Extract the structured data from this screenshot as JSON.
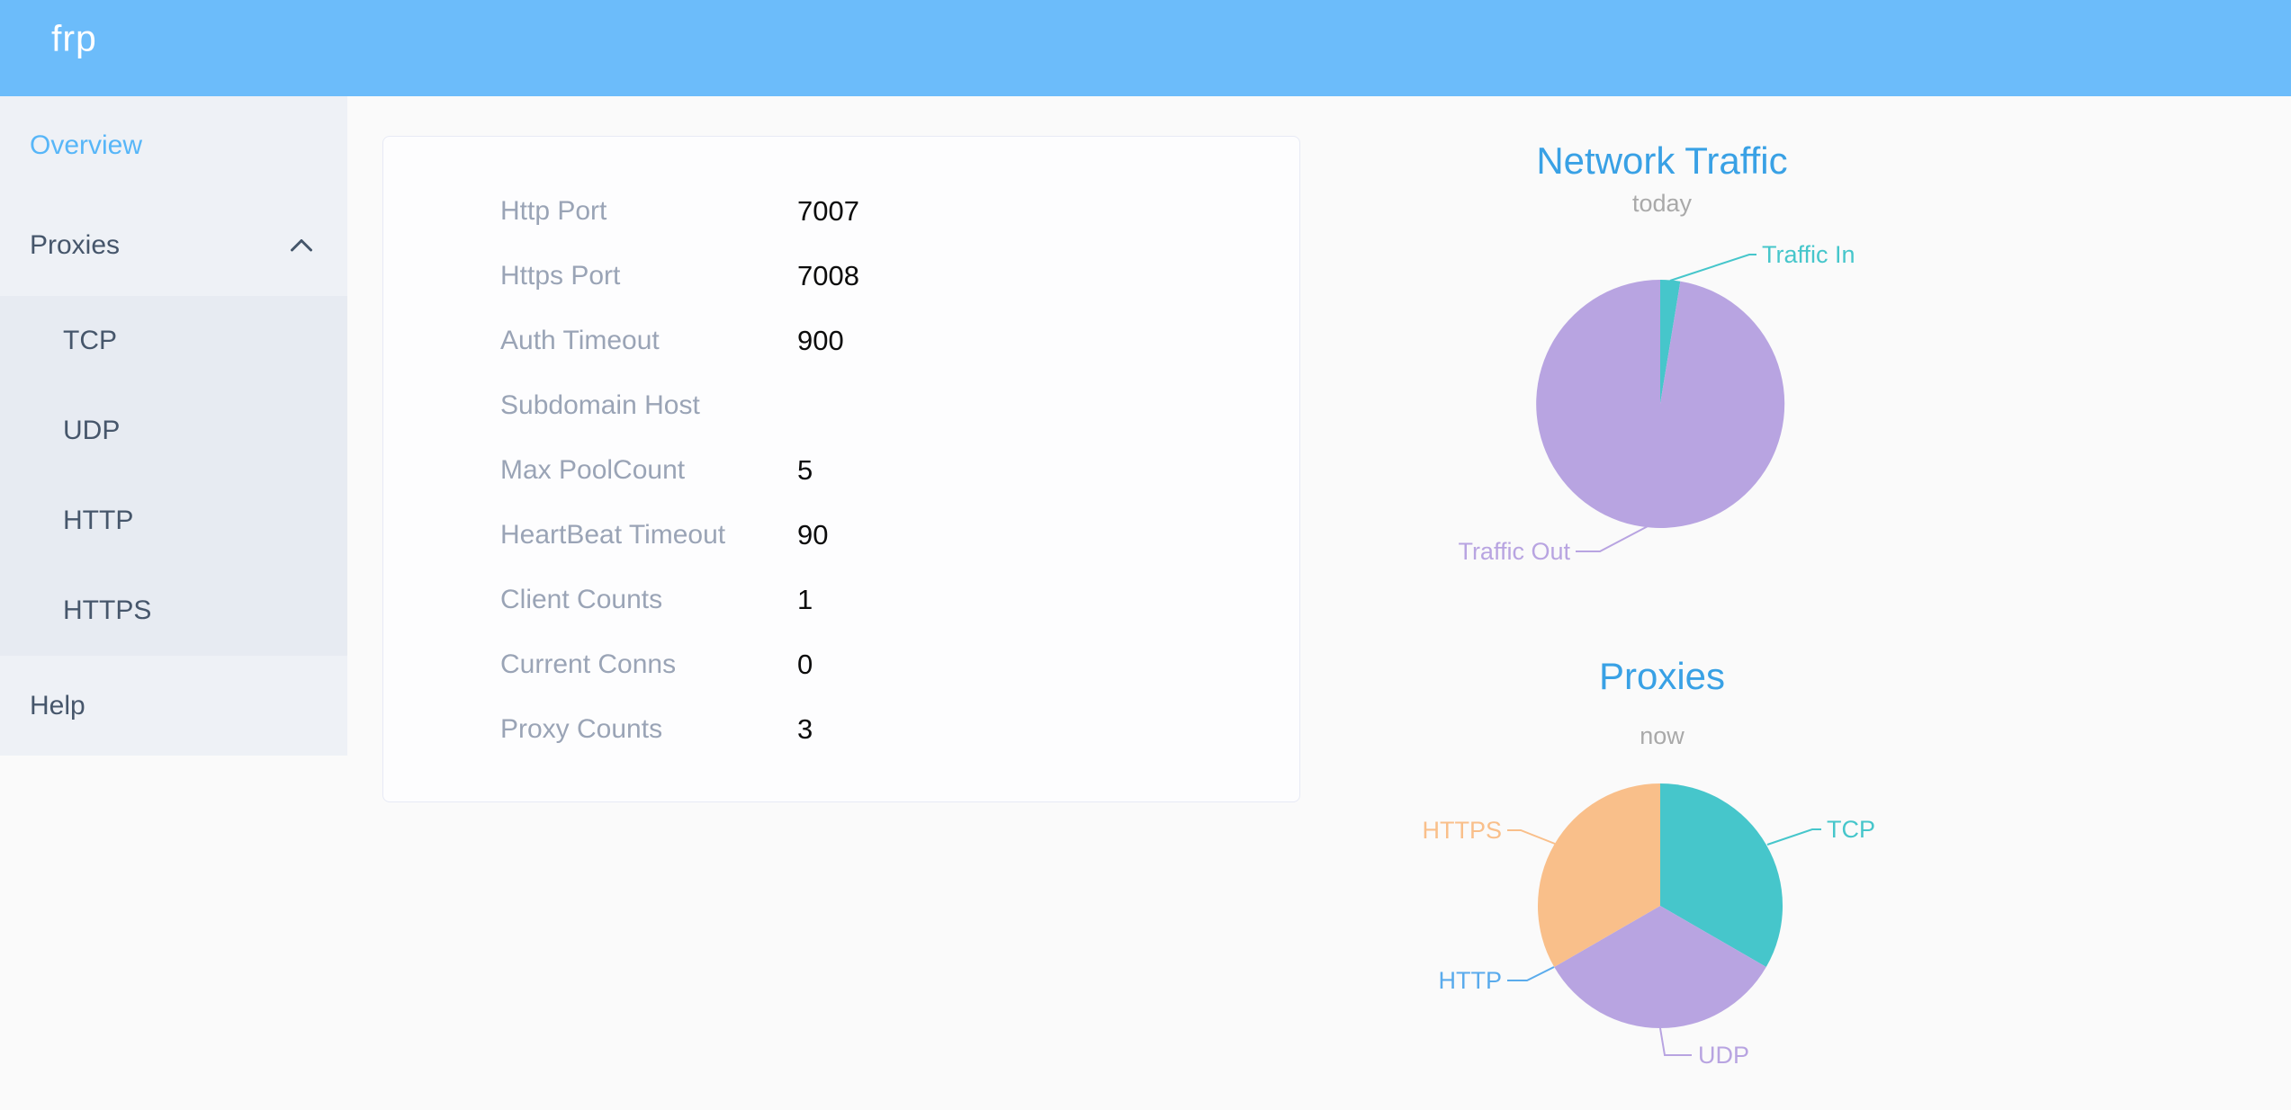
{
  "header": {
    "logo": "frp",
    "background_color": "#6cbcfa"
  },
  "sidebar": {
    "overview_label": "Overview",
    "proxies_label": "Proxies",
    "proxy_types": [
      "TCP",
      "UDP",
      "HTTP",
      "HTTPS"
    ],
    "help_label": "Help",
    "active_item": "Overview",
    "active_color": "#57b6f8",
    "text_color": "#46566b"
  },
  "server_info": {
    "rows": [
      {
        "label": "Http Port",
        "value": "7007"
      },
      {
        "label": "Https Port",
        "value": "7008"
      },
      {
        "label": "Auth Timeout",
        "value": "900"
      },
      {
        "label": "Subdomain Host",
        "value": ""
      },
      {
        "label": "Max PoolCount",
        "value": "5"
      },
      {
        "label": "HeartBeat Timeout",
        "value": "90"
      },
      {
        "label": "Client Counts",
        "value": "1"
      },
      {
        "label": "Current Conns",
        "value": "0"
      },
      {
        "label": "Proxy Counts",
        "value": "3"
      }
    ]
  },
  "chart_data": [
    {
      "type": "pie",
      "title": "Network Traffic",
      "subtitle": "today",
      "legend_position": "outside-labels-with-leader-lines",
      "value_note": "no numeric labels shown; values are estimated percent share",
      "slices": [
        {
          "name": "Traffic In",
          "value": 2.6,
          "color": "#46c6cb"
        },
        {
          "name": "Traffic Out",
          "value": 97.4,
          "color": "#b8a4e1"
        }
      ]
    },
    {
      "type": "pie",
      "title": "Proxies",
      "subtitle": "now",
      "legend_position": "outside-labels-with-leader-lines",
      "value_note": "proxy counts now (total Proxy Counts = 3; HTTP slice is zero)",
      "slices": [
        {
          "name": "TCP",
          "value": 1,
          "color": "#46c6cb"
        },
        {
          "name": "UDP",
          "value": 1,
          "color": "#b8a4e1"
        },
        {
          "name": "HTTP",
          "value": 0,
          "color": "#5aabec"
        },
        {
          "name": "HTTPS",
          "value": 1,
          "color": "#f9bf8a"
        }
      ]
    }
  ],
  "colors": {
    "header_blue": "#6cbcfa",
    "chart_title_blue": "#39a1e5",
    "sidebar_bg": "#eef1f6",
    "submenu_bg": "#e7ebf2",
    "page_bg": "#fafafa",
    "card_border": "#e7eaf5",
    "info_label_gray": "#9aa4b6",
    "subtitle_gray": "#a9a9a9"
  }
}
